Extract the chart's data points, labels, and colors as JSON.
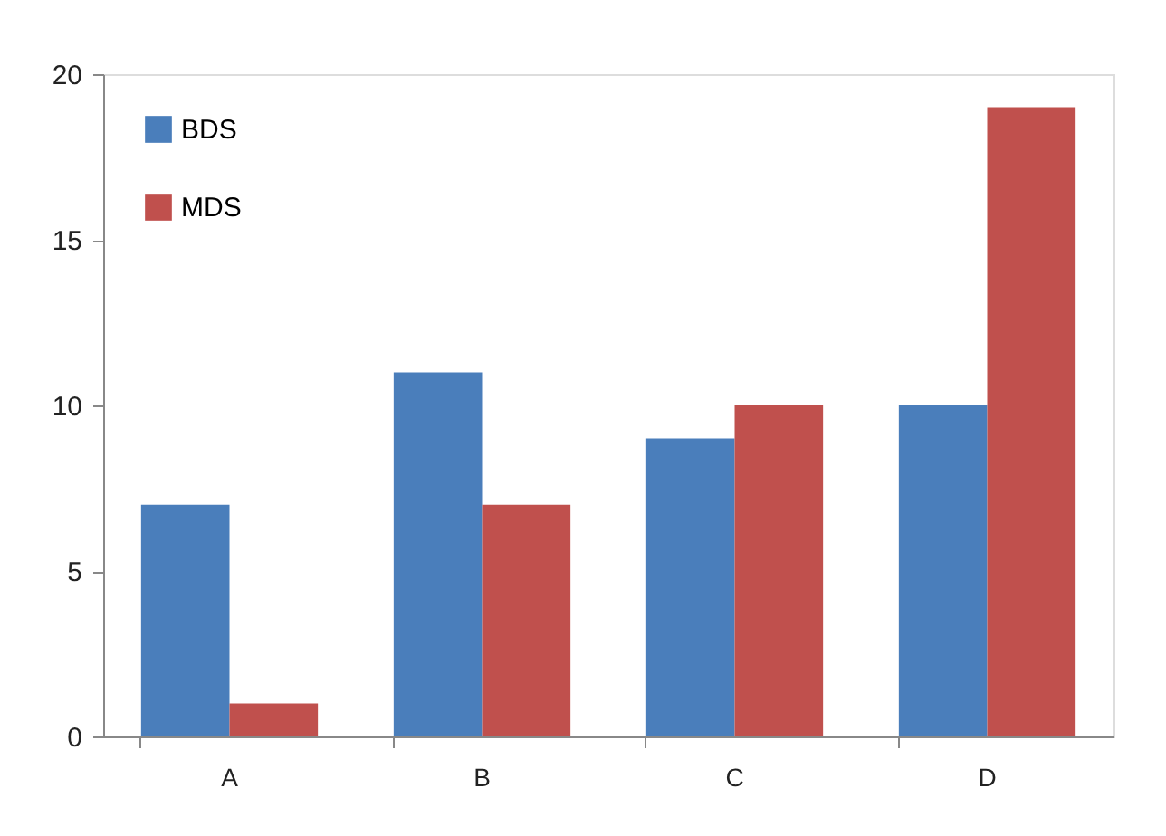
{
  "chart_data": {
    "type": "bar",
    "categories": [
      "A",
      "B",
      "C",
      "D"
    ],
    "series": [
      {
        "name": "BDS",
        "color": "#4a7ebb",
        "values": [
          7,
          11,
          9,
          10
        ]
      },
      {
        "name": "MDS",
        "color": "#c0504d",
        "values": [
          1,
          7,
          10,
          19
        ]
      }
    ],
    "ylim": [
      0,
      20
    ],
    "yticks": [
      0,
      5,
      10,
      15,
      20
    ],
    "grid": false,
    "legend": "top left"
  }
}
